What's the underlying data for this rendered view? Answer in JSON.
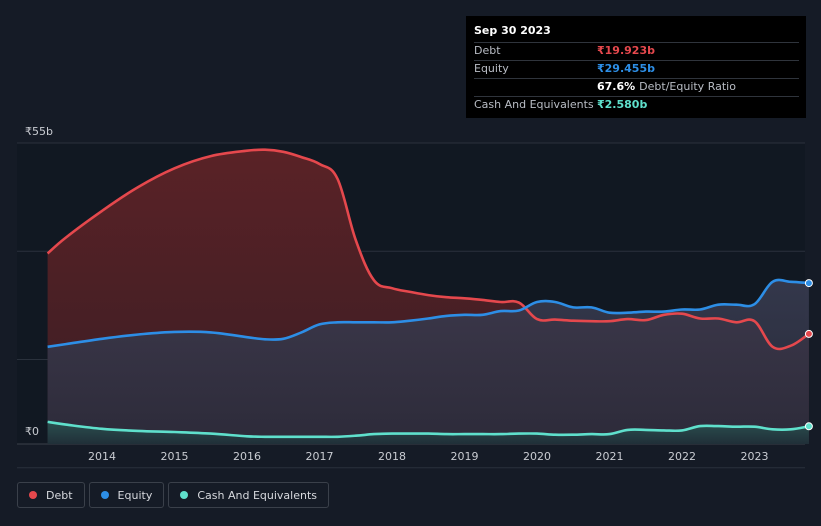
{
  "tooltip": {
    "date": "Sep 30 2023",
    "rows": [
      {
        "label": "Debt",
        "value": "₹19.923b",
        "color": "#e5484d"
      },
      {
        "label": "Equity",
        "value": "₹29.455b",
        "color": "#2d8ee6"
      },
      {
        "label": "",
        "value": "67.6%",
        "sub": "Debt/Equity Ratio",
        "color": "#ffffff"
      },
      {
        "label": "Cash And Equivalents",
        "value": "₹2.580b",
        "color": "#5fe0cc"
      }
    ]
  },
  "legend": [
    {
      "label": "Debt",
      "color": "#e5484d"
    },
    {
      "label": "Equity",
      "color": "#2d8ee6"
    },
    {
      "label": "Cash And Equivalents",
      "color": "#5fe0cc"
    }
  ],
  "chart_data": {
    "type": "area",
    "title": "",
    "xlabel": "",
    "ylabel": "",
    "y_top_label": "₹55b",
    "y_bottom_label": "₹0",
    "ylim": [
      0,
      55
    ],
    "xlim": [
      2013.25,
      2023.75
    ],
    "x_ticks": [
      "2014",
      "2015",
      "2016",
      "2017",
      "2018",
      "2019",
      "2020",
      "2021",
      "2022",
      "2023"
    ],
    "x": [
      2013.25,
      2013.5,
      2014.0,
      2014.5,
      2015.0,
      2015.5,
      2016.0,
      2016.25,
      2016.5,
      2016.75,
      2017.0,
      2017.25,
      2017.5,
      2017.75,
      2018.0,
      2018.25,
      2018.5,
      2018.75,
      2019.0,
      2019.25,
      2019.5,
      2019.75,
      2020.0,
      2020.25,
      2020.5,
      2020.75,
      2021.0,
      2021.25,
      2021.5,
      2021.75,
      2022.0,
      2022.25,
      2022.5,
      2022.75,
      2023.0,
      2023.25,
      2023.5,
      2023.75
    ],
    "series": [
      {
        "name": "Debt",
        "color": "#e5484d",
        "values": [
          35.0,
          38.0,
          43.0,
          47.5,
          51.0,
          53.3,
          54.3,
          54.5,
          54.1,
          53.1,
          51.8,
          49.0,
          37.5,
          30.0,
          28.5,
          27.8,
          27.2,
          26.8,
          26.6,
          26.3,
          25.9,
          25.8,
          22.7,
          22.6,
          22.4,
          22.3,
          22.3,
          22.7,
          22.5,
          23.5,
          23.7,
          22.8,
          22.8,
          22.1,
          22.3,
          17.5,
          17.7,
          19.923
        ]
      },
      {
        "name": "Equity",
        "color": "#2d8ee6",
        "values": [
          17.5,
          18.0,
          19.0,
          19.8,
          20.3,
          20.2,
          19.3,
          18.9,
          19.0,
          20.2,
          21.7,
          22.1,
          22.1,
          22.1,
          22.1,
          22.4,
          22.8,
          23.3,
          23.5,
          23.5,
          24.2,
          24.3,
          25.9,
          25.9,
          24.9,
          24.9,
          23.9,
          23.9,
          24.1,
          24.1,
          24.5,
          24.5,
          25.4,
          25.4,
          25.5,
          29.7,
          29.7,
          29.455
        ]
      },
      {
        "name": "Cash And Equivalents",
        "color": "#5fe0cc",
        "values": [
          3.4,
          2.9,
          2.1,
          1.7,
          1.5,
          1.2,
          0.7,
          0.6,
          0.6,
          0.6,
          0.6,
          0.6,
          0.8,
          1.1,
          1.2,
          1.2,
          1.2,
          1.1,
          1.1,
          1.1,
          1.1,
          1.2,
          1.2,
          1.0,
          1.0,
          1.1,
          1.1,
          1.9,
          1.9,
          1.8,
          1.8,
          2.6,
          2.6,
          2.5,
          2.5,
          2.0,
          2.0,
          2.58
        ]
      }
    ]
  }
}
